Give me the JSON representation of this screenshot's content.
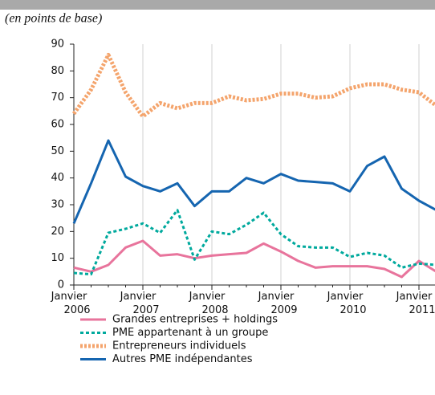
{
  "chart_data": {
    "type": "line",
    "subtitle": "(en points de base)",
    "categories": [
      "Janvier 2006",
      null,
      null,
      null,
      "Janvier 2007",
      null,
      null,
      null,
      "Janvier 2008",
      null,
      null,
      null,
      "Janvier 2009",
      null,
      null,
      null,
      "Janvier 2010",
      null,
      null,
      null,
      "Janvier 2011",
      null
    ],
    "series": [
      {
        "name": "Grandes entreprises + holdings",
        "color": "#e8749c",
        "dash": "solid",
        "values": [
          6.5,
          5,
          7.5,
          14,
          16.5,
          11,
          11.5,
          10,
          11,
          11.5,
          12,
          15.5,
          12.5,
          9,
          6.5,
          7,
          7,
          7,
          6,
          3,
          9,
          5
        ]
      },
      {
        "name": "PME appartenant à un groupe",
        "color": "#00a99d",
        "dash": "dotted",
        "values": [
          4.5,
          4,
          19.5,
          21,
          23,
          19.5,
          28,
          9.5,
          20,
          19,
          22.5,
          27,
          19,
          14.5,
          14,
          14,
          10.5,
          12,
          11,
          6.5,
          8,
          7.5
        ]
      },
      {
        "name": "Entrepreneurs individuels",
        "color": "#f4a46c",
        "dash": "dotted",
        "values": [
          64,
          73,
          86,
          72,
          63,
          68,
          66,
          68,
          68,
          70.5,
          69,
          69.5,
          71.5,
          71.5,
          70,
          70.5,
          73.5,
          75,
          75,
          73,
          72,
          67
        ]
      },
      {
        "name": "Autres PME indépendantes",
        "color": "#1565b0",
        "dash": "solid",
        "values": [
          23,
          38,
          54,
          40.5,
          37,
          35,
          38,
          29.5,
          35,
          35,
          40,
          38,
          41.5,
          39,
          38.5,
          38,
          35,
          44.5,
          48,
          36,
          31.5,
          28
        ]
      }
    ],
    "ylim": [
      0,
      90
    ],
    "yticks": [
      0,
      10,
      20,
      30,
      40,
      50,
      60,
      70,
      80,
      90
    ],
    "grid": true
  }
}
